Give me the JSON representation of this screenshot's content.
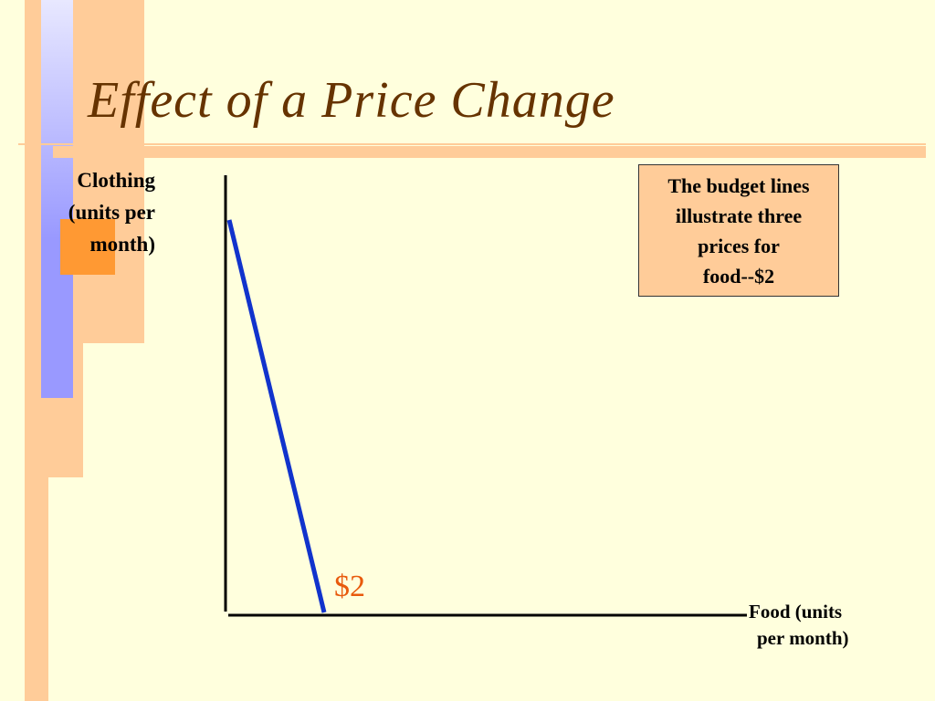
{
  "slide": {
    "title": "Effect of a Price Change"
  },
  "chart_data": {
    "type": "line",
    "title": "",
    "ylabel_lines": [
      "Clothing",
      "(units per",
      "month)"
    ],
    "xlabel_lines": [
      "Food (units",
      "per month)"
    ],
    "note_lines": [
      "The budget lines",
      "illustrate three",
      "prices for",
      "food--$2"
    ],
    "series": [
      {
        "name": "$2",
        "color": "#1133CC",
        "start": "y-intercept (max clothing)",
        "end": "x-intercept (max food)"
      }
    ],
    "grid": false
  },
  "colors": {
    "background": "#FFFFDD",
    "title": "#663300",
    "budget_line": "#1133CC",
    "price_label": "#E85A0C",
    "note_box": "#FFCC99",
    "accent_peach": "#FFCC99",
    "accent_blue": "#9999FF",
    "accent_orange": "#FF9933"
  }
}
